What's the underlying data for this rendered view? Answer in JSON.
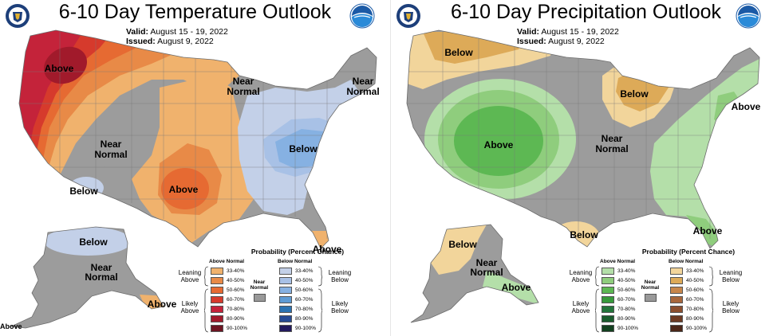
{
  "left": {
    "title": "6-10 Day Temperature Outlook",
    "valid_label": "Valid:",
    "valid_value": "August 15 - 19, 2022",
    "issued_label": "Issued:",
    "issued_value": "August 9, 2022",
    "labels": {
      "above_nw": "Above",
      "near_normal_west_1": "Near",
      "near_normal_west_2": "Normal",
      "below_sw": "Below",
      "above_south": "Above",
      "near_normal_mid_1": "Near",
      "near_normal_mid_2": "Normal",
      "near_normal_ne_1": "Near",
      "near_normal_ne_2": "Normal",
      "below_east": "Below",
      "above_fl": "Above",
      "below_ak": "Below",
      "near_normal_ak_1": "Near",
      "near_normal_ak_2": "Normal",
      "above_ak_se": "Above",
      "above_bottom": "Above"
    },
    "legend": {
      "title": "Probability (Percent Chance)",
      "above_header": "Above Normal",
      "below_header": "Below Normal",
      "leaning_above": [
        "Leaning",
        "Above"
      ],
      "likely_above": [
        "Likely",
        "Above"
      ],
      "leaning_below": [
        "Leaning",
        "Below"
      ],
      "likely_below": [
        "Likely",
        "Below"
      ],
      "near_normal": [
        "Near",
        "Normal"
      ],
      "ranges": [
        "33-40%",
        "40-50%",
        "50-60%",
        "60-70%",
        "70-80%",
        "80-90%",
        "90-100%"
      ],
      "above_colors": [
        "#f0b26d",
        "#e88a47",
        "#e66a32",
        "#d63a2c",
        "#c4233a",
        "#a11a2b",
        "#6d1421"
      ],
      "below_colors": [
        "#c3d0e8",
        "#a8c1e6",
        "#86b1e2",
        "#5e9bd4",
        "#2b73b2",
        "#264a94",
        "#221a5e"
      ]
    }
  },
  "right": {
    "title": "6-10 Day Precipitation Outlook",
    "valid_label": "Valid:",
    "valid_value": "August 15 - 19, 2022",
    "issued_label": "Issued:",
    "issued_value": "August 9, 2022",
    "labels": {
      "below_nw": "Below",
      "below_glakes": "Below",
      "above_west": "Above",
      "near_normal_mid_1": "Near",
      "near_normal_mid_2": "Normal",
      "above_ne": "Above",
      "below_tx": "Below",
      "above_se": "Above",
      "below_ak": "Below",
      "near_normal_ak_1": "Near",
      "near_normal_ak_2": "Normal",
      "above_ak": "Above"
    },
    "legend": {
      "title": "Probability (Percent Chance)",
      "above_header": "Above Normal",
      "below_header": "Below Normal",
      "leaning_above": [
        "Leaning",
        "Above"
      ],
      "likely_above": [
        "Likely",
        "Above"
      ],
      "leaning_below": [
        "Leaning",
        "Below"
      ],
      "likely_below": [
        "Likely",
        "Below"
      ],
      "near_normal": [
        "Near",
        "Normal"
      ],
      "ranges": [
        "33-40%",
        "40-50%",
        "50-60%",
        "60-70%",
        "70-80%",
        "80-90%",
        "90-100%"
      ],
      "above_colors": [
        "#b4dfa9",
        "#8fcd7d",
        "#5db853",
        "#379a3b",
        "#23743a",
        "#1a5c2d",
        "#12401f"
      ],
      "below_colors": [
        "#f2d59b",
        "#ddaa58",
        "#c7864b",
        "#a8663b",
        "#8b4e2e",
        "#6d3a23",
        "#4b2618"
      ]
    }
  },
  "colors": {
    "normal_gray": "#9c9c9c",
    "border": "#6b6b6b"
  }
}
